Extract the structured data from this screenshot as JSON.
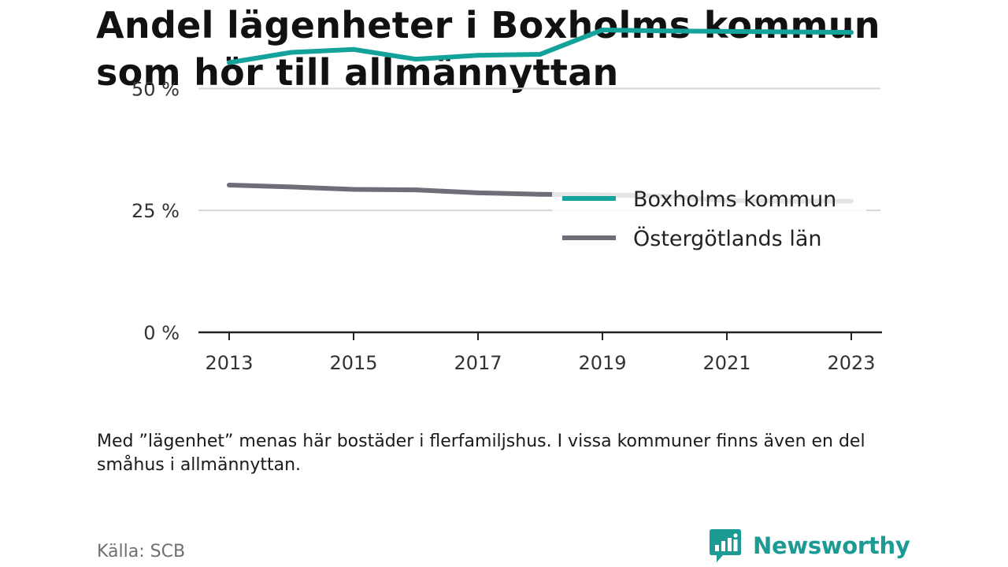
{
  "title": "Andel lägenheter i Boxholms kommun som hör till allmännyttan",
  "note": "Med ”lägenhet” menas här bostäder i flerfamiljshus. I vissa kommuner finns även en del småhus i allmännyttan.",
  "source": "Källa: SCB",
  "brand": {
    "name": "Newsworthy",
    "icon": "newsworthy-logo-icon",
    "color": "#1b9b94"
  },
  "chart_data": {
    "type": "line",
    "title": "Andel lägenheter i Boxholms kommun som hör till allmännyttan",
    "xlabel": "",
    "ylabel": "",
    "x": [
      2013,
      2014,
      2015,
      2016,
      2017,
      2018,
      2019,
      2020,
      2021,
      2022,
      2023
    ],
    "x_ticks": [
      "2013",
      "2015",
      "2017",
      "2019",
      "2021",
      "2023"
    ],
    "y_ticks": [
      {
        "value": 0,
        "label": "0 %"
      },
      {
        "value": 25,
        "label": "25 %"
      },
      {
        "value": 50,
        "label": "50 %"
      }
    ],
    "ylim": [
      0,
      62
    ],
    "grid": true,
    "legend_position": "top-right",
    "series": [
      {
        "name": "Boxholms kommun",
        "color": "#14a39b",
        "values": [
          55.3,
          57.4,
          58.0,
          56.0,
          56.8,
          57.0,
          62.0,
          61.8,
          61.7,
          61.6,
          61.5
        ]
      },
      {
        "name": "Östergötlands län",
        "color": "#6e6e78",
        "values": [
          30.2,
          29.8,
          29.3,
          29.2,
          28.6,
          28.3,
          28.2,
          27.9,
          27.0,
          26.9,
          26.9
        ]
      }
    ]
  }
}
